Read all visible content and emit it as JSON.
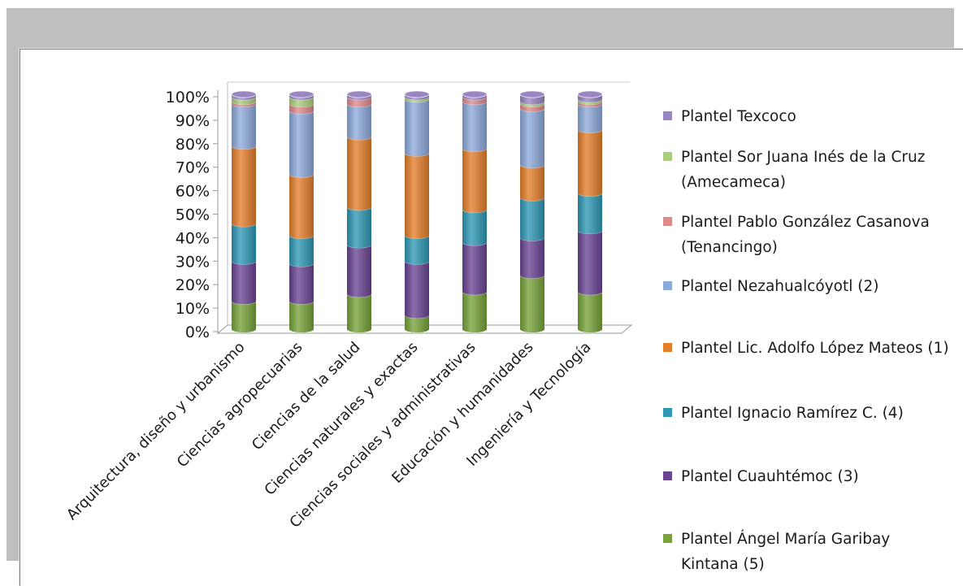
{
  "chart_data": {
    "type": "bar",
    "stacked": true,
    "percent": true,
    "three_d": true,
    "title": "",
    "xlabel": "",
    "ylabel": "",
    "ylim": [
      0,
      100
    ],
    "y_ticks": [
      "0%",
      "10%",
      "20%",
      "30%",
      "40%",
      "50%",
      "60%",
      "70%",
      "80%",
      "90%",
      "100%"
    ],
    "grid": false,
    "legend_position": "right",
    "categories": [
      "Arquitectura, diseño y urbanismo",
      "Ciencias agropecuarias",
      "Ciencias de la salud",
      "Ciencias naturales y exactas",
      "Ciencias sociales y administrativas",
      "Educación y humanidades",
      "Ingeniería y Tecnología"
    ],
    "series": [
      {
        "name": "Plantel Ángel María Garibay Kintana (5)",
        "color": "#77a33a",
        "values": [
          12,
          12,
          15,
          6,
          16,
          23,
          16
        ]
      },
      {
        "name": "Plantel Cuauhtémoc (3)",
        "color": "#6a4593",
        "values": [
          17,
          16,
          21,
          23,
          21,
          16,
          26
        ]
      },
      {
        "name": "Plantel Ignacio Ramírez C. (4)",
        "color": "#2f98b5",
        "values": [
          16,
          12,
          16,
          11,
          14,
          17,
          16
        ]
      },
      {
        "name": "Plantel Lic. Adolfo López Mateos (1)",
        "color": "#e57e2b",
        "values": [
          33,
          26,
          30,
          35,
          26,
          14,
          27
        ]
      },
      {
        "name": "Plantel Nezahualcóyotl (2)",
        "color": "#8eaadb",
        "values": [
          18,
          27,
          14,
          23,
          20,
          24,
          11
        ]
      },
      {
        "name": "Plantel Pablo González Casanova (Tenancingo)",
        "color": "#df8a8a",
        "values": [
          1,
          3,
          3,
          0,
          2,
          2,
          1
        ]
      },
      {
        "name": "Plantel Sor Juana Inés de la Cruz (Amecameca)",
        "color": "#a9cf7d",
        "values": [
          2,
          3,
          0,
          1,
          0,
          1,
          1
        ]
      },
      {
        "name": "Plantel Texcoco",
        "color": "#9b86c4",
        "values": [
          1,
          1,
          1,
          1,
          1,
          3,
          2
        ]
      }
    ]
  },
  "legend": [
    {
      "label": "Plantel Texcoco",
      "color": "#9b86c4"
    },
    {
      "label": "Plantel Sor Juana Inés de la Cruz (Amecameca)",
      "color": "#a9cf7d"
    },
    {
      "label": "Plantel Pablo González Casanova (Tenancingo)",
      "color": "#df8a8a"
    },
    {
      "label": "Plantel Nezahualcóyotl (2)",
      "color": "#8eaadb"
    },
    {
      "label": "Plantel Lic. Adolfo López Mateos (1)",
      "color": "#e57e2b"
    },
    {
      "label": "Plantel Ignacio Ramírez C. (4)",
      "color": "#2f98b5"
    },
    {
      "label": "Plantel Cuauhtémoc (3)",
      "color": "#6a4593"
    },
    {
      "label": "Plantel Ángel María Garibay Kintana (5)",
      "color": "#77a33a"
    }
  ]
}
